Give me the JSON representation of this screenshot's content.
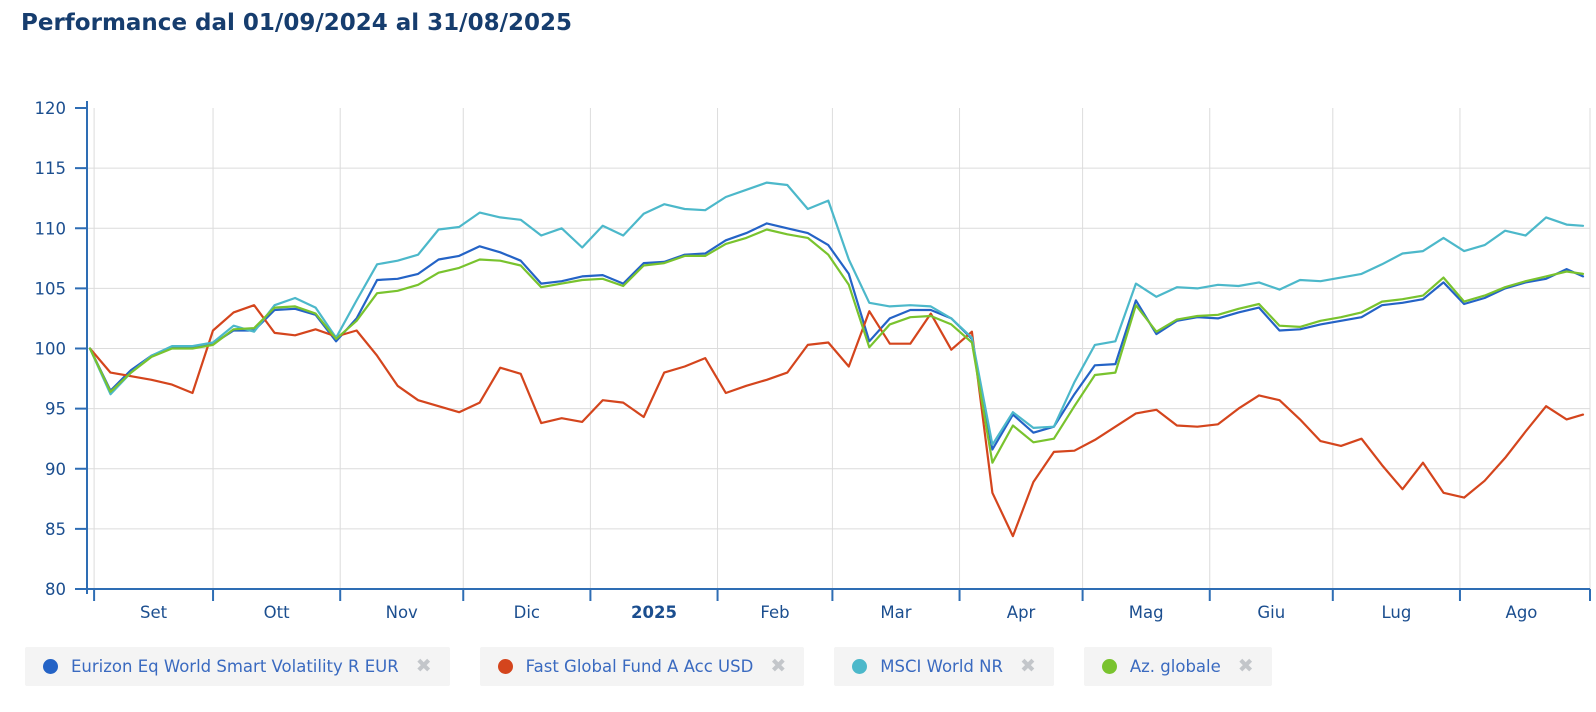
{
  "title": "Performance dal 01/09/2024 al 31/08/2025",
  "colors": {
    "title_text": "#163d6e",
    "axis_line": "#2e6db4",
    "axis_text": "#1b4e8f",
    "gridline": "#dcdcdc",
    "legend_background": "#f4f4f4",
    "legend_text": "#3a6ac0",
    "legend_close_icon": "#c3c6ca"
  },
  "legend": {
    "remove_icon": "✖"
  },
  "chart_data": {
    "type": "line",
    "title": "Performance dal 01/09/2024 al 31/08/2025",
    "xlabel": "",
    "ylabel": "",
    "ylim": [
      80,
      120
    ],
    "y_ticks": [
      80,
      85,
      90,
      95,
      100,
      105,
      110,
      115,
      120
    ],
    "grid": true,
    "legend_position": "bottom",
    "x_unit": "days since 01/09/2024",
    "x_total_days": 364,
    "sample_step_days": 5,
    "month_ticks_days": [
      1,
      30,
      61,
      91,
      122,
      153,
      181,
      212,
      242,
      273,
      303,
      334
    ],
    "month_labels": [
      {
        "label": "Set",
        "center_day": 15.5,
        "bold": false
      },
      {
        "label": "Ott",
        "center_day": 45.5,
        "bold": false
      },
      {
        "label": "Nov",
        "center_day": 76,
        "bold": false
      },
      {
        "label": "Dic",
        "center_day": 106.5,
        "bold": false
      },
      {
        "label": "2025",
        "center_day": 137.5,
        "bold": true
      },
      {
        "label": "Feb",
        "center_day": 167,
        "bold": false
      },
      {
        "label": "Mar",
        "center_day": 196.5,
        "bold": false
      },
      {
        "label": "Apr",
        "center_day": 227,
        "bold": false
      },
      {
        "label": "Mag",
        "center_day": 257.5,
        "bold": false
      },
      {
        "label": "Giu",
        "center_day": 288,
        "bold": false
      },
      {
        "label": "Lug",
        "center_day": 318.5,
        "bold": false
      },
      {
        "label": "Ago",
        "center_day": 349,
        "bold": false
      }
    ],
    "series": [
      {
        "name": "Eurizon Eq World Smart Volatility R EUR",
        "color": "#2463c6",
        "values": [
          100,
          96.5,
          98.2,
          99.4,
          100.1,
          100.1,
          100.4,
          101.5,
          101.5,
          103.2,
          103.3,
          102.8,
          100.6,
          102.5,
          105.7,
          105.8,
          106.2,
          107.4,
          107.7,
          108.5,
          108.0,
          107.3,
          105.4,
          105.6,
          106.0,
          106.1,
          105.4,
          107.1,
          107.2,
          107.8,
          107.9,
          109.0,
          109.6,
          110.4,
          110.0,
          109.6,
          108.6,
          106.2,
          100.6,
          102.5,
          103.2,
          103.2,
          102.5,
          100.8,
          91.6,
          94.5,
          93.0,
          93.5,
          96.2,
          98.6,
          98.7,
          104.0,
          101.2,
          102.3,
          102.6,
          102.5,
          103.0,
          103.4,
          101.5,
          101.6,
          102.0,
          102.3,
          102.6,
          103.6,
          103.8,
          104.1,
          105.5,
          103.7,
          104.2,
          105.0,
          105.5,
          105.8,
          106.6,
          106.0
        ]
      },
      {
        "name": "Fast Global Fund A Acc USD",
        "color": "#d4451d",
        "values": [
          100,
          98.0,
          97.7,
          97.4,
          97.0,
          96.3,
          101.5,
          103.0,
          103.6,
          101.3,
          101.1,
          101.6,
          101.0,
          101.5,
          99.4,
          96.9,
          95.7,
          95.2,
          94.7,
          95.5,
          98.4,
          97.9,
          93.8,
          94.2,
          93.9,
          95.7,
          95.5,
          94.3,
          98.0,
          98.5,
          99.2,
          96.3,
          96.9,
          97.4,
          98.0,
          100.3,
          100.5,
          98.5,
          103.1,
          100.4,
          100.4,
          102.9,
          99.9,
          101.4,
          88.0,
          84.4,
          88.9,
          91.4,
          91.5,
          92.4,
          93.5,
          94.6,
          94.9,
          93.6,
          93.5,
          93.7,
          95.0,
          96.1,
          95.7,
          94.1,
          92.3,
          91.9,
          92.5,
          90.3,
          88.3,
          90.5,
          88.0,
          87.6,
          89.0,
          90.9,
          93.1,
          95.2,
          94.1,
          94.5
        ]
      },
      {
        "name": "MSCI World NR",
        "color": "#4cb8ca",
        "values": [
          100,
          96.2,
          98.0,
          99.4,
          100.2,
          100.2,
          100.5,
          101.9,
          101.4,
          103.6,
          104.2,
          103.4,
          100.9,
          104.0,
          107.0,
          107.3,
          107.8,
          109.9,
          110.1,
          111.3,
          110.9,
          110.7,
          109.4,
          110.0,
          108.4,
          110.2,
          109.4,
          111.2,
          112.0,
          111.6,
          111.5,
          112.6,
          113.2,
          113.8,
          113.6,
          111.6,
          112.3,
          107.4,
          103.8,
          103.5,
          103.6,
          103.5,
          102.5,
          100.9,
          92.0,
          94.7,
          93.4,
          93.5,
          97.2,
          100.3,
          100.6,
          105.4,
          104.3,
          105.1,
          105.0,
          105.3,
          105.2,
          105.5,
          104.9,
          105.7,
          105.6,
          105.9,
          106.2,
          107.0,
          107.9,
          108.1,
          109.2,
          108.1,
          108.6,
          109.8,
          109.4,
          110.9,
          110.3,
          110.2
        ]
      },
      {
        "name": "Az. globale",
        "color": "#79c32e",
        "values": [
          100,
          96.4,
          98.0,
          99.3,
          100.0,
          100.0,
          100.3,
          101.6,
          101.7,
          103.4,
          103.5,
          102.9,
          100.8,
          102.3,
          104.6,
          104.8,
          105.3,
          106.3,
          106.7,
          107.4,
          107.3,
          106.9,
          105.1,
          105.4,
          105.7,
          105.8,
          105.2,
          106.9,
          107.1,
          107.7,
          107.7,
          108.7,
          109.2,
          109.9,
          109.5,
          109.2,
          107.8,
          105.3,
          100.1,
          102.0,
          102.6,
          102.7,
          102.0,
          100.5,
          90.5,
          93.6,
          92.2,
          92.5,
          95.2,
          97.8,
          98.0,
          103.6,
          101.4,
          102.4,
          102.7,
          102.8,
          103.3,
          103.7,
          101.9,
          101.8,
          102.3,
          102.6,
          103.0,
          103.9,
          104.1,
          104.4,
          105.9,
          103.9,
          104.4,
          105.1,
          105.6,
          106.0,
          106.4,
          106.2
        ]
      }
    ]
  }
}
